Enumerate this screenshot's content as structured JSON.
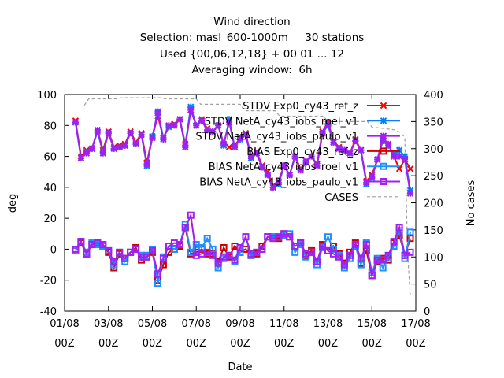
{
  "chart_data": {
    "type": "line",
    "title_lines": [
      "Wind direction",
      "Selection: masl_600-1000m     30 stations",
      "Used {00,06,12,18} + 00 01 ... 12",
      "Averaging window:  6h"
    ],
    "xlabel": "Date",
    "ylabel": "deg",
    "y2label": "No cases",
    "xlim": [
      0,
      16
    ],
    "ylim": [
      -40,
      100
    ],
    "y2lim": [
      0,
      400
    ],
    "grid": false,
    "legend_position": "top-right inside",
    "x_ticks": [
      {
        "value": 0,
        "label": [
          "01/08",
          "00Z"
        ]
      },
      {
        "value": 2,
        "label": [
          "03/08",
          "00Z"
        ]
      },
      {
        "value": 4,
        "label": [
          "05/08",
          "00Z"
        ]
      },
      {
        "value": 6,
        "label": [
          "07/08",
          "00Z"
        ]
      },
      {
        "value": 8,
        "label": [
          "09/08",
          "00Z"
        ]
      },
      {
        "value": 10,
        "label": [
          "11/08",
          "00Z"
        ]
      },
      {
        "value": 12,
        "label": [
          "13/08",
          "00Z"
        ]
      },
      {
        "value": 14,
        "label": [
          "15/08",
          "00Z"
        ]
      },
      {
        "value": 16,
        "label": [
          "17/08",
          "00Z"
        ]
      }
    ],
    "y_ticks": [
      -40,
      -20,
      0,
      20,
      40,
      60,
      80,
      100
    ],
    "y2_ticks": [
      0,
      50,
      100,
      150,
      200,
      250,
      300,
      350,
      400
    ],
    "x": [
      0.5,
      0.75,
      1,
      1.25,
      1.5,
      1.75,
      2,
      2.25,
      2.5,
      2.75,
      3,
      3.25,
      3.5,
      3.75,
      4,
      4.25,
      4.5,
      4.75,
      5,
      5.25,
      5.5,
      5.75,
      6,
      6.25,
      6.5,
      6.75,
      7,
      7.25,
      7.5,
      7.75,
      8,
      8.25,
      8.5,
      8.75,
      9,
      9.25,
      9.5,
      9.75,
      10,
      10.25,
      10.5,
      10.75,
      11,
      11.25,
      11.5,
      11.75,
      12,
      12.25,
      12.5,
      12.75,
      13,
      13.25,
      13.5,
      13.75,
      14,
      14.25,
      14.5,
      14.75,
      15,
      15.25,
      15.5,
      15.75
    ],
    "series": [
      {
        "name": "STDV Exp0_cy43_ref_z",
        "color": "#ff0000",
        "marker": "x",
        "axis": "y",
        "values": [
          83,
          60,
          64,
          65,
          77,
          64,
          76,
          66,
          67,
          68,
          76,
          69,
          75,
          56,
          73,
          86,
          72,
          80,
          81,
          84,
          68,
          90,
          80,
          84,
          78,
          76,
          80,
          68,
          66,
          67,
          72,
          75,
          60,
          63,
          54,
          50,
          41,
          44,
          54,
          48,
          60,
          52,
          57,
          60,
          55,
          76,
          82,
          70,
          66,
          64,
          62,
          71,
          64,
          44,
          48,
          58,
          72,
          68,
          60,
          52,
          58,
          52
        ]
      },
      {
        "name": "STDV NetA_cy43_iobs_roel_v1",
        "color": "#0080ff",
        "marker": "*",
        "axis": "y",
        "values": [
          82,
          59,
          63,
          65,
          76,
          63,
          75,
          65,
          66,
          67,
          75,
          68,
          74,
          54,
          73,
          89,
          72,
          79,
          80,
          84,
          67,
          92,
          80,
          83,
          77,
          76,
          80,
          67,
          84,
          66,
          71,
          74,
          59,
          62,
          53,
          48,
          40,
          42,
          54,
          48,
          60,
          51,
          56,
          60,
          54,
          75,
          80,
          69,
          65,
          64,
          62,
          70,
          64,
          42,
          46,
          58,
          70,
          67,
          61,
          64,
          60,
          38
        ]
      },
      {
        "name": "STDV NetA_cy43_iobs_paulo_v1",
        "color": "#a020f0",
        "marker": "x*",
        "axis": "y",
        "values": [
          82,
          59,
          62,
          65,
          77,
          62,
          75,
          65,
          66,
          67,
          75,
          68,
          74,
          55,
          72,
          88,
          71,
          80,
          80,
          84,
          66,
          90,
          80,
          83,
          77,
          76,
          80,
          68,
          82,
          66,
          72,
          74,
          60,
          62,
          53,
          48,
          40,
          43,
          54,
          48,
          60,
          51,
          57,
          60,
          54,
          75,
          81,
          69,
          65,
          64,
          62,
          70,
          64,
          43,
          47,
          58,
          71,
          68,
          60,
          60,
          58,
          36
        ]
      },
      {
        "name": "BIAS Exp0_cy43_ref_z",
        "color": "#d00000",
        "marker": "square",
        "axis": "y",
        "values": [
          -1,
          4,
          -3,
          3,
          4,
          2,
          -2,
          -12,
          -3,
          -6,
          -2,
          1,
          -7,
          -5,
          -2,
          -20,
          -10,
          -2,
          0,
          2,
          14,
          -3,
          -2,
          0,
          -3,
          -3,
          -8,
          1,
          -5,
          2,
          -2,
          0,
          -4,
          -3,
          2,
          8,
          8,
          7,
          10,
          8,
          2,
          4,
          -4,
          -1,
          -8,
          3,
          -1,
          2,
          -3,
          -9,
          -2,
          4,
          -9,
          -1,
          -17,
          -8,
          -6,
          -7,
          4,
          9,
          -4,
          7
        ]
      },
      {
        "name": "BIAS NetA_cy43_iobs_roel_v1",
        "color": "#1e90ff",
        "marker": "square",
        "axis": "y",
        "values": [
          -1,
          5,
          -2,
          4,
          3,
          2,
          -1,
          -10,
          -2,
          -8,
          -2,
          0,
          -4,
          -4,
          0,
          -22,
          -5,
          2,
          0,
          3,
          16,
          -2,
          3,
          1,
          7,
          0,
          -12,
          -6,
          -4,
          -8,
          -2,
          8,
          -4,
          -2,
          0,
          8,
          8,
          8,
          9,
          10,
          -2,
          3,
          -5,
          -2,
          -10,
          1,
          8,
          0,
          -4,
          -12,
          -6,
          2,
          -10,
          4,
          -15,
          -6,
          -12,
          -5,
          2,
          12,
          -6,
          11
        ]
      },
      {
        "name": "BIAS NetA_cy43_iobs_paulo_v1",
        "color": "#a020f0",
        "marker": "square",
        "axis": "y",
        "values": [
          0,
          5,
          -3,
          3,
          4,
          3,
          -1,
          -8,
          -2,
          -6,
          -2,
          0,
          -5,
          -5,
          -1,
          -16,
          -6,
          2,
          4,
          3,
          14,
          22,
          -4,
          -3,
          -2,
          -4,
          -9,
          -5,
          -4,
          -7,
          1,
          8,
          -3,
          -2,
          0,
          8,
          7,
          8,
          10,
          8,
          2,
          4,
          -3,
          -2,
          -8,
          2,
          -1,
          -3,
          -5,
          -10,
          -4,
          3,
          -6,
          3,
          -17,
          -7,
          -7,
          -4,
          5,
          14,
          -4,
          -2
        ]
      },
      {
        "name": "CASES",
        "color": "#a0a0a0",
        "marker": "none",
        "axis": "y2",
        "dash": true,
        "points": [
          [
            0.9,
            380
          ],
          [
            1.1,
            392
          ],
          [
            2.4,
            392
          ],
          [
            2.6,
            394
          ],
          [
            4.4,
            394
          ],
          [
            4.6,
            392
          ],
          [
            6.0,
            392
          ],
          [
            6.2,
            382
          ],
          [
            8.0,
            382
          ],
          [
            8.2,
            370
          ],
          [
            9.6,
            370
          ],
          [
            9.8,
            360
          ],
          [
            11.8,
            360
          ],
          [
            12.0,
            350
          ],
          [
            13.8,
            350
          ],
          [
            14.0,
            340
          ],
          [
            15.0,
            335
          ],
          [
            15.3,
            330
          ],
          [
            15.5,
            320
          ],
          [
            15.55,
            240
          ],
          [
            15.6,
            150
          ],
          [
            15.65,
            90
          ],
          [
            15.7,
            60
          ],
          [
            15.75,
            30
          ]
        ]
      }
    ],
    "legend": [
      "STDV Exp0_cy43_ref_z",
      "STDV NetA_cy43_iobs_roel_v1",
      "STDV NetA_cy43_iobs_paulo_v1",
      "BIAS Exp0_cy43_ref_z",
      "BIAS NetA_cy43_iobs_roel_v1",
      "BIAS NetA_cy43_iobs_paulo_v1",
      "CASES"
    ]
  }
}
